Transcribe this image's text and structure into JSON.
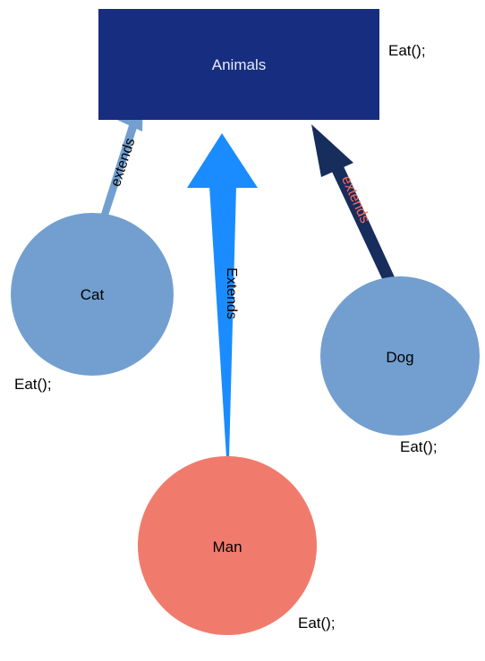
{
  "nodes": {
    "animals": {
      "label": "Animals",
      "method": "Eat();",
      "fill": "#172d80",
      "text_color": "#e8ecf8"
    },
    "cat": {
      "label": "Cat",
      "method": "Eat();",
      "fill": "#729fcf",
      "text_color": "#000000"
    },
    "dog": {
      "label": "Dog",
      "method": "Eat();",
      "fill": "#729fcf",
      "text_color": "#000000"
    },
    "man": {
      "label": "Man",
      "method": "Eat();",
      "fill": "#f07b6d",
      "text_color": "#000000"
    }
  },
  "edges": {
    "cat_to_animals": {
      "label": "extends",
      "color": "#729fcf",
      "text_color": "#000000"
    },
    "man_to_animals": {
      "label": "Extends",
      "color": "#1a8cff",
      "text_color": "#000000"
    },
    "dog_to_animals": {
      "label": "extends",
      "color": "#172d5c",
      "text_color": "#ff6a5a"
    }
  }
}
